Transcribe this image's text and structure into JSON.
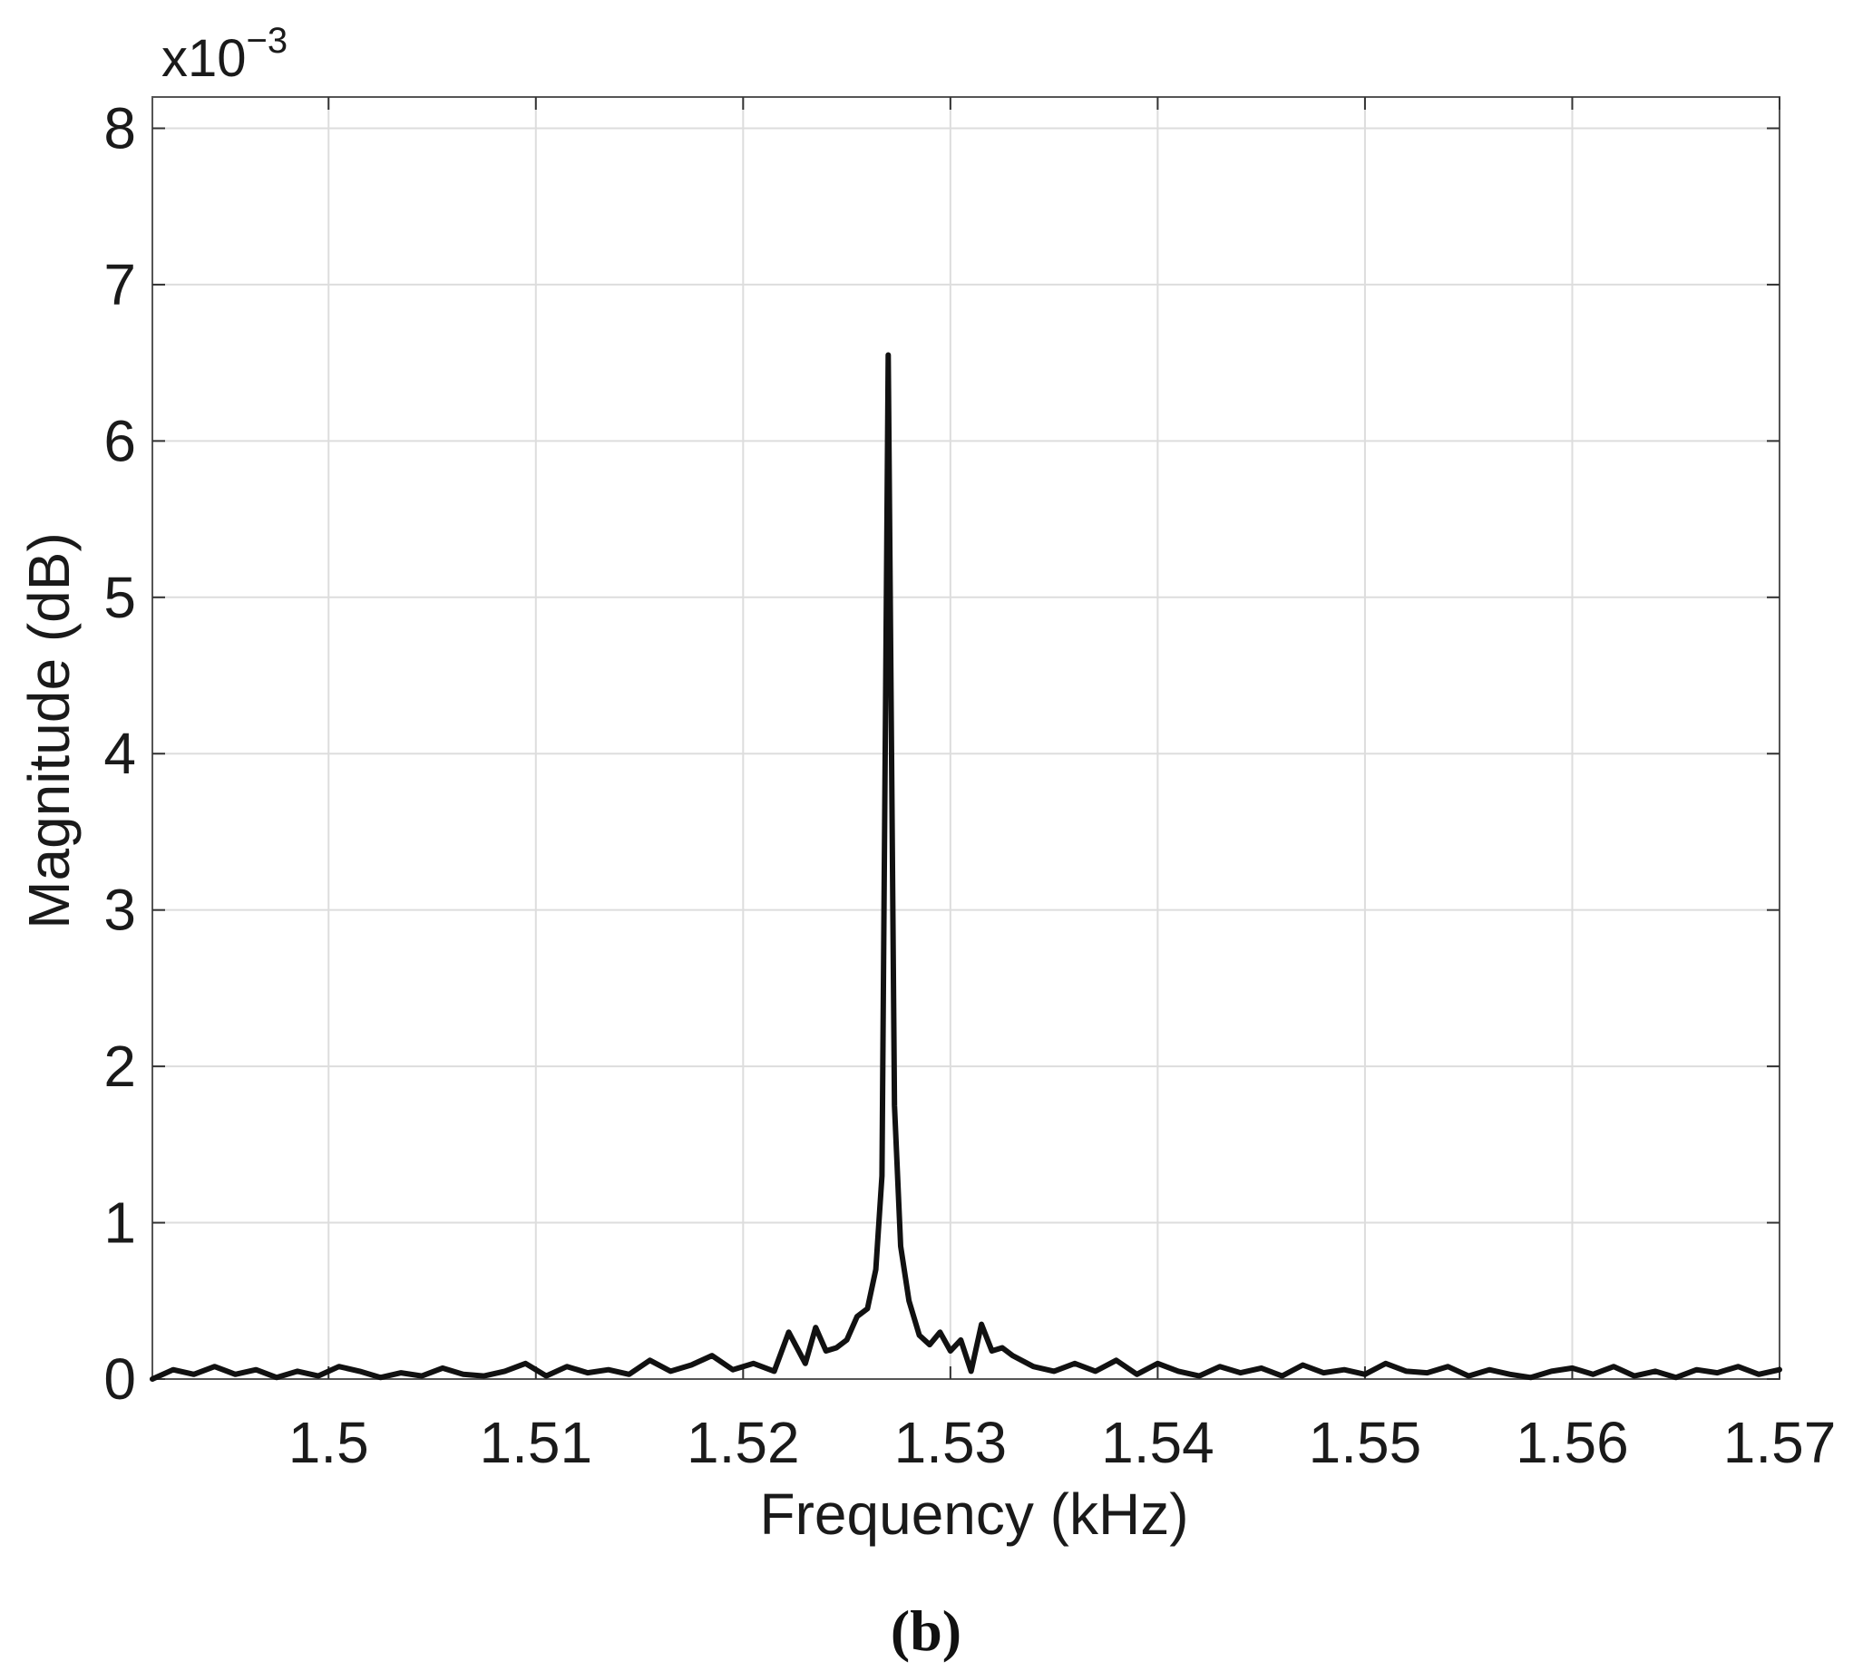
{
  "chart_data": {
    "type": "line",
    "title": "",
    "xlabel": "Frequency (kHz)",
    "ylabel": "Magnitude (dB)",
    "y_multiplier": "x10",
    "y_multiplier_exponent": "−3",
    "xlim": [
      1.4915,
      1.57
    ],
    "ylim": [
      0,
      8.2
    ],
    "grid": true,
    "x_ticks": [
      1.5,
      1.51,
      1.52,
      1.53,
      1.54,
      1.55,
      1.56,
      1.57
    ],
    "x_tick_labels": [
      "1.5",
      "1.51",
      "1.52",
      "1.53",
      "1.54",
      "1.55",
      "1.56",
      "1.57"
    ],
    "y_ticks": [
      0,
      1,
      2,
      3,
      4,
      5,
      6,
      7,
      8
    ],
    "y_tick_labels": [
      "0",
      "1",
      "2",
      "3",
      "4",
      "5",
      "6",
      "7",
      "8"
    ],
    "line_color": "#111111",
    "series": [
      {
        "x": [
          1.4915,
          1.4925,
          1.4935,
          1.4945,
          1.4955,
          1.4965,
          1.4975,
          1.4985,
          1.4995,
          1.5005,
          1.5015,
          1.5025,
          1.5035,
          1.5045,
          1.5055,
          1.5065,
          1.5075,
          1.5085,
          1.5095,
          1.5105,
          1.5115,
          1.5125,
          1.5135,
          1.5145,
          1.5155,
          1.5165,
          1.5175,
          1.5185,
          1.5195,
          1.5205,
          1.5215,
          1.5222,
          1.523,
          1.5235,
          1.524,
          1.5245,
          1.525,
          1.5255,
          1.526,
          1.5264,
          1.5267,
          1.527,
          1.5273,
          1.5276,
          1.528,
          1.5285,
          1.529,
          1.5295,
          1.53,
          1.5305,
          1.531,
          1.5315,
          1.532,
          1.5325,
          1.533,
          1.534,
          1.535,
          1.536,
          1.537,
          1.538,
          1.539,
          1.54,
          1.541,
          1.542,
          1.543,
          1.544,
          1.545,
          1.546,
          1.547,
          1.548,
          1.549,
          1.55,
          1.551,
          1.552,
          1.553,
          1.554,
          1.555,
          1.556,
          1.557,
          1.558,
          1.559,
          1.56,
          1.561,
          1.562,
          1.563,
          1.564,
          1.565,
          1.566,
          1.567,
          1.568,
          1.569,
          1.57
        ],
        "y": [
          0.0,
          0.06,
          0.03,
          0.08,
          0.03,
          0.06,
          0.01,
          0.05,
          0.02,
          0.08,
          0.05,
          0.01,
          0.04,
          0.02,
          0.07,
          0.03,
          0.02,
          0.05,
          0.1,
          0.02,
          0.08,
          0.04,
          0.06,
          0.03,
          0.12,
          0.05,
          0.09,
          0.15,
          0.06,
          0.1,
          0.05,
          0.3,
          0.1,
          0.33,
          0.18,
          0.2,
          0.25,
          0.4,
          0.45,
          0.7,
          1.3,
          6.55,
          1.75,
          0.85,
          0.5,
          0.28,
          0.22,
          0.3,
          0.18,
          0.25,
          0.05,
          0.35,
          0.18,
          0.2,
          0.15,
          0.08,
          0.05,
          0.1,
          0.05,
          0.12,
          0.03,
          0.1,
          0.05,
          0.02,
          0.08,
          0.04,
          0.07,
          0.02,
          0.09,
          0.04,
          0.06,
          0.03,
          0.1,
          0.05,
          0.04,
          0.08,
          0.02,
          0.06,
          0.03,
          0.01,
          0.05,
          0.07,
          0.03,
          0.08,
          0.02,
          0.05,
          0.01,
          0.06,
          0.04,
          0.08,
          0.03,
          0.06
        ]
      }
    ]
  },
  "caption": "(b)"
}
